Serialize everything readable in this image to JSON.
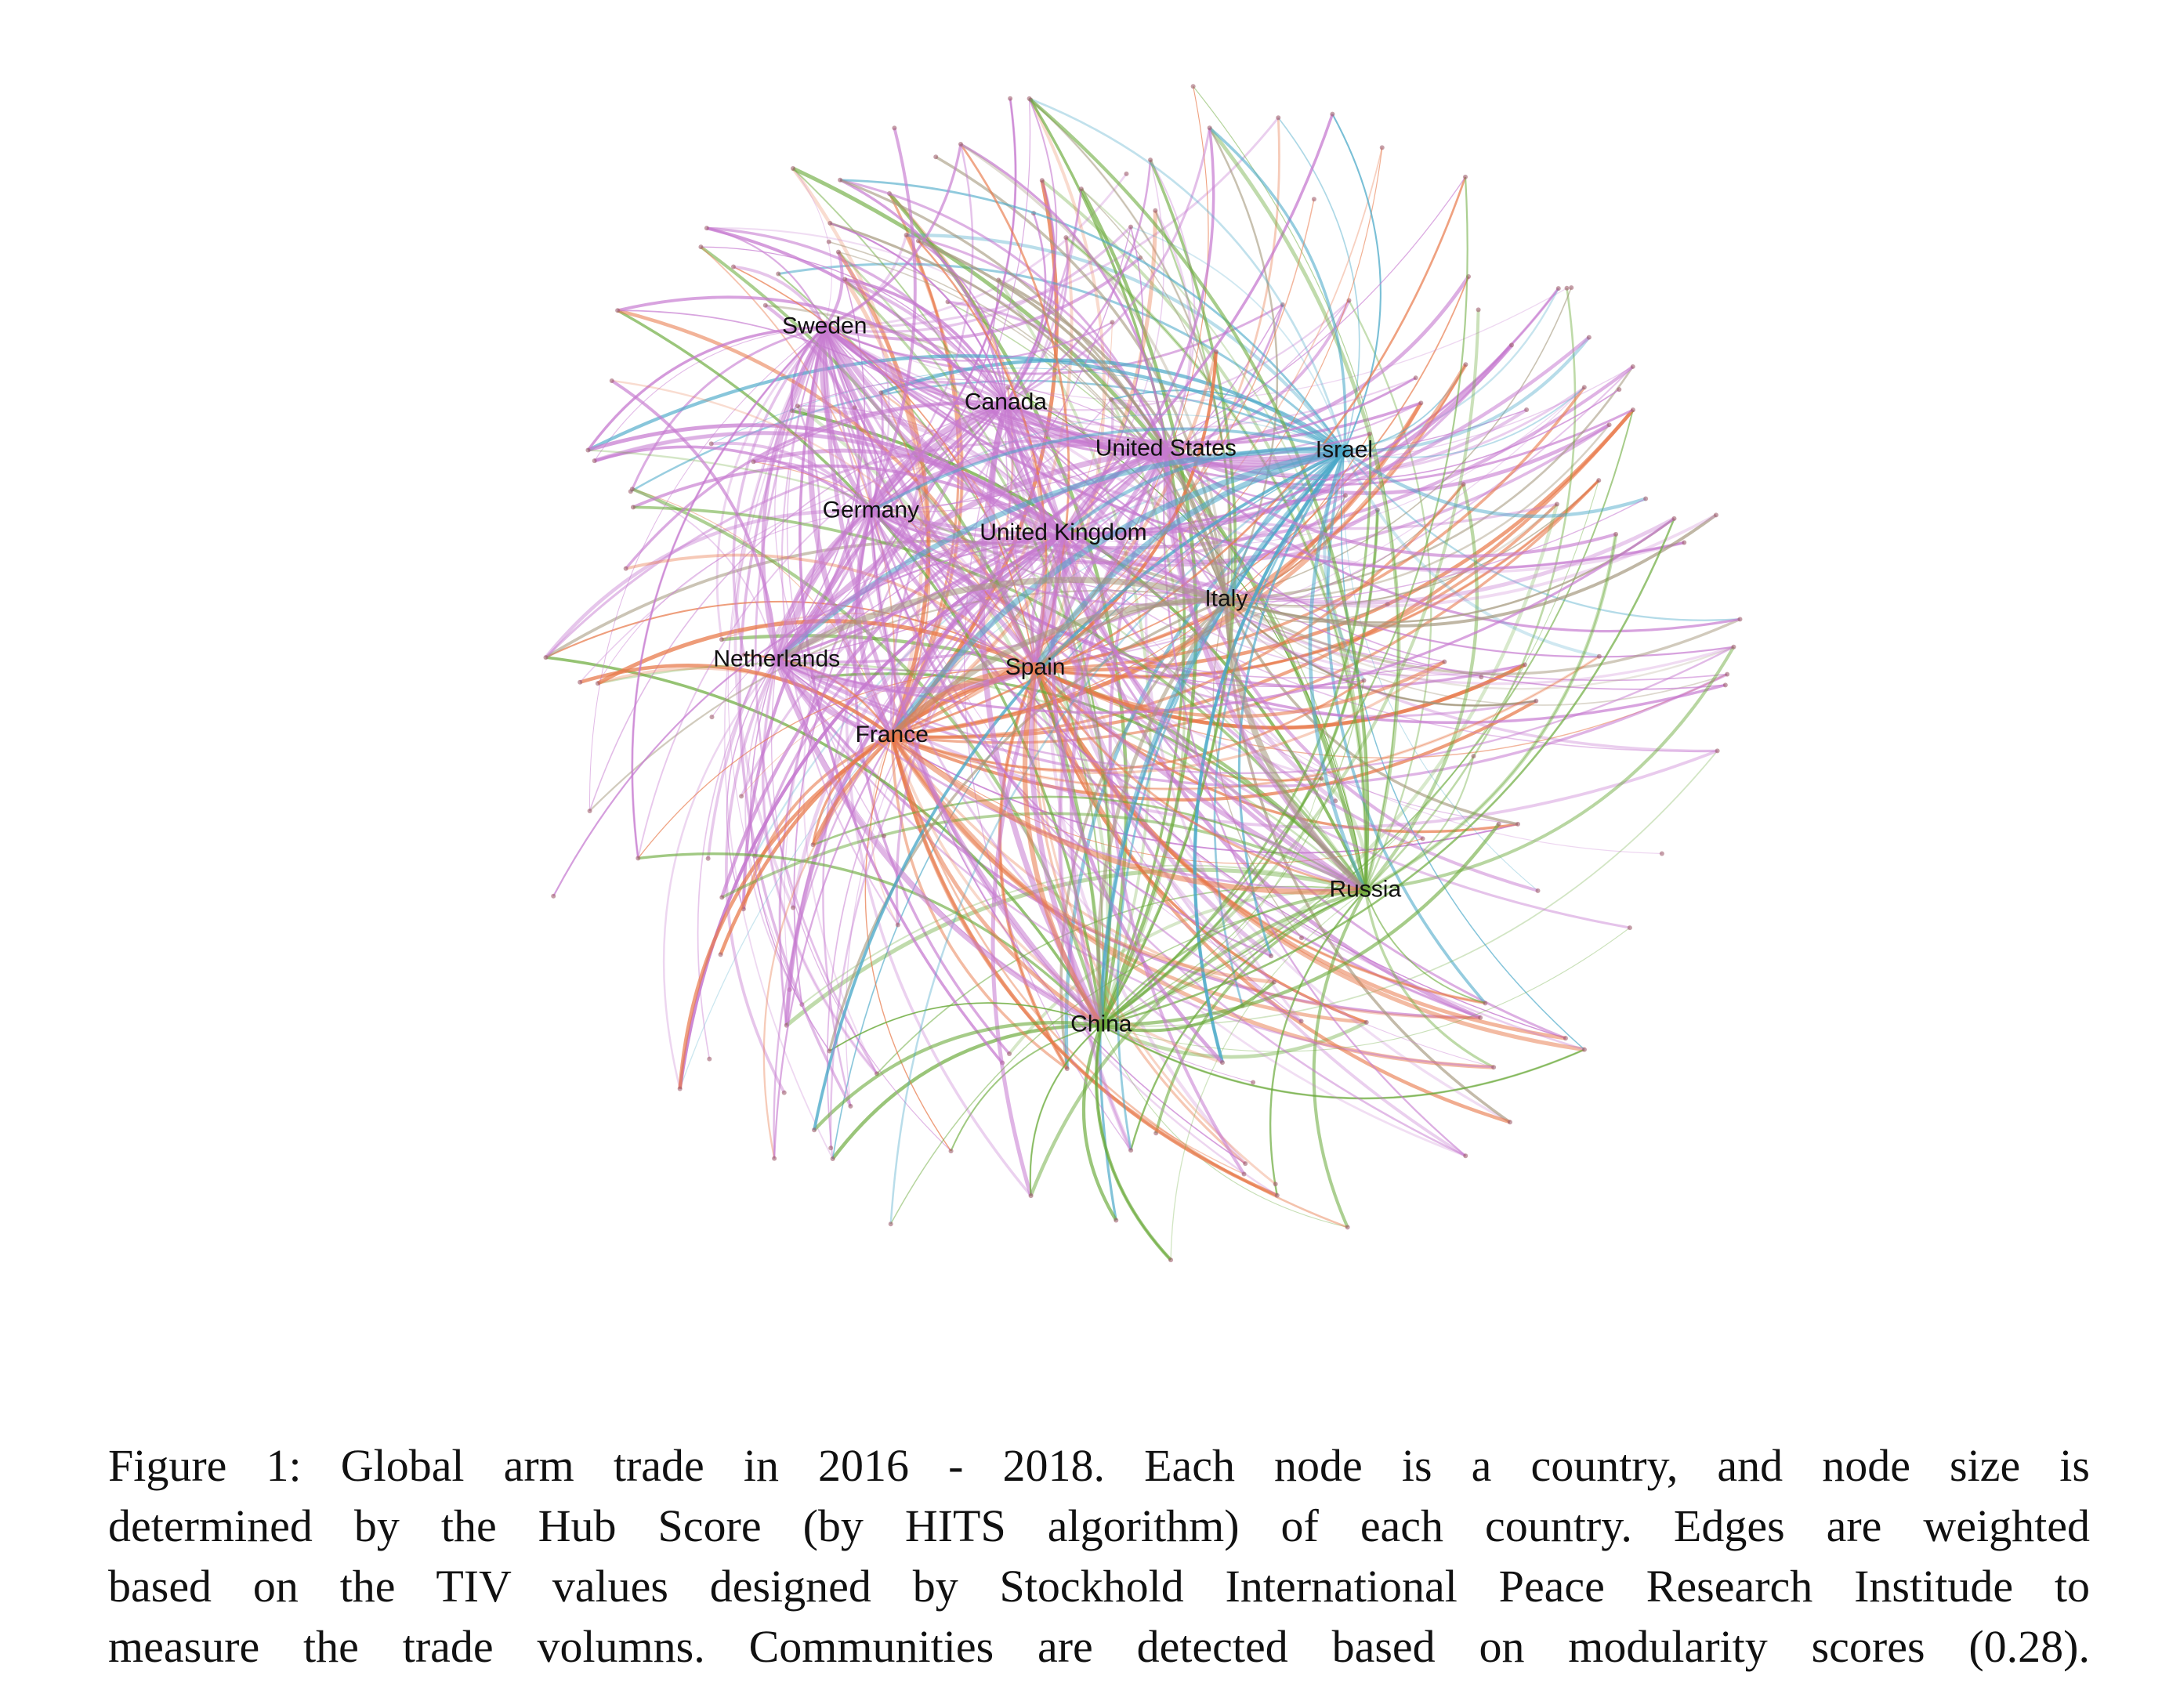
{
  "figure": {
    "nodes": [
      {
        "label": "Sweden"
      },
      {
        "label": "Canada"
      },
      {
        "label": "United States"
      },
      {
        "label": "Israel"
      },
      {
        "label": "Germany"
      },
      {
        "label": "United Kingdom"
      },
      {
        "label": "Italy"
      },
      {
        "label": "Netherlands"
      },
      {
        "label": "Spain"
      },
      {
        "label": "France"
      },
      {
        "label": "Russia"
      },
      {
        "label": "China"
      }
    ],
    "caption": {
      "lines": [
        "Figure 1: Global arm trade in 2016 - 2018. Each node is a country, and node size is",
        "determined by the Hub Score (by HITS algorithm) of each country. Edges are weighted",
        "based on the TIV values designed by Stockhold International Peace Research Institude to",
        "measure the trade volumns. Communities are detected based on modularity scores (0.28)."
      ]
    }
  }
}
